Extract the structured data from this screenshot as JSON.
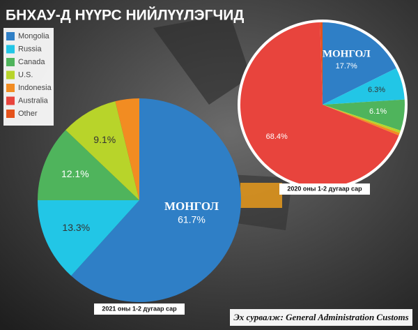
{
  "title": "БНХАУ-Д НҮҮРС НИЙЛҮҮЛЭГЧИД",
  "source": "Эх сурвалж: General Administration Customs",
  "chart_data": [
    {
      "type": "pie",
      "caption": "2021 оны 1-2 дугаар сар",
      "name_label": "МОНГОЛ",
      "categories": [
        "Mongolia",
        "Russia",
        "Canada",
        "U.S.",
        "Indonesia",
        "Australia",
        "Other"
      ],
      "colors": [
        "#2f7fc6",
        "#22c6e6",
        "#4fb45c",
        "#b8d42a",
        "#f28c22",
        "#e8443d",
        "#e5531c"
      ],
      "values": [
        61.7,
        13.3,
        12.1,
        9.1,
        3.8,
        0,
        0
      ],
      "value_labels": [
        "61.7%",
        "13.3%",
        "12.1%",
        "9.1%",
        null,
        null,
        null
      ]
    },
    {
      "type": "pie",
      "caption": "2020 оны 1-2 дугаар сар",
      "name_label": "МОНГОЛ",
      "categories": [
        "Mongolia",
        "Russia",
        "Canada",
        "U.S.",
        "Indonesia",
        "Australia",
        "Other"
      ],
      "colors": [
        "#2f7fc6",
        "#22c6e6",
        "#4fb45c",
        "#b8d42a",
        "#f28c22",
        "#e8443d",
        "#e5531c"
      ],
      "values": [
        17.7,
        6.3,
        6.1,
        0.5,
        0.5,
        68.4,
        0.5
      ],
      "value_labels": [
        "17.7%",
        "6.3%",
        "6.1%",
        null,
        null,
        "68.4%",
        null
      ]
    }
  ]
}
